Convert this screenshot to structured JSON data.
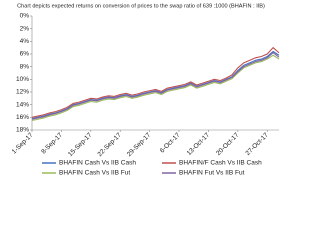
{
  "chart_data": {
    "type": "line",
    "title": "Chart depicts expected returns on conversion of  prices to the swap ratio of 639 :1000 (BHAFIN : IIB)",
    "categories": [
      "1-Sep-17",
      null,
      null,
      null,
      null,
      "8-Sep-17",
      null,
      null,
      null,
      null,
      "15-Sep-17",
      null,
      null,
      null,
      null,
      "22-Sep-17",
      null,
      null,
      null,
      null,
      "29-Sep-17",
      null,
      null,
      null,
      null,
      "6-Oct-17",
      null,
      null,
      null,
      null,
      "13-Oct-17",
      null,
      null,
      null,
      null,
      "20-Oct-17",
      null,
      null,
      null,
      null,
      "27-Oct-17",
      null,
      null
    ],
    "series": [
      {
        "name": "BHAFIN Cash Vs IIB Cash",
        "color": "#4472c4",
        "values": [
          16.2,
          16.0,
          15.8,
          15.5,
          15.3,
          15.0,
          14.6,
          14.0,
          13.8,
          13.5,
          13.2,
          13.3,
          13.0,
          12.8,
          12.9,
          12.6,
          12.4,
          12.7,
          12.5,
          12.2,
          12.0,
          11.8,
          12.1,
          11.6,
          11.4,
          11.2,
          11.0,
          10.6,
          11.1,
          10.8,
          10.5,
          10.2,
          10.4,
          10.0,
          9.6,
          8.6,
          7.8,
          7.4,
          7.0,
          6.8,
          6.4,
          5.6,
          6.2
        ]
      },
      {
        "name": "BHAFIN/F Cash Vs IIB Cash",
        "color": "#c0504d",
        "values": [
          16.0,
          15.8,
          15.6,
          15.3,
          15.1,
          14.8,
          14.4,
          13.8,
          13.6,
          13.3,
          13.0,
          13.1,
          12.8,
          12.6,
          12.7,
          12.4,
          12.2,
          12.5,
          12.3,
          12.0,
          11.8,
          11.6,
          11.9,
          11.4,
          11.2,
          11.0,
          10.8,
          10.4,
          10.9,
          10.6,
          10.3,
          10.0,
          10.2,
          9.8,
          9.3,
          8.2,
          7.4,
          7.0,
          6.6,
          6.4,
          6.0,
          5.0,
          5.8
        ]
      },
      {
        "name": "BHAFIN Cash Vs IIB Fut",
        "color": "#9bbb59",
        "values": [
          16.5,
          16.3,
          16.1,
          15.8,
          15.6,
          15.3,
          14.9,
          14.3,
          14.1,
          13.8,
          13.5,
          13.6,
          13.3,
          13.1,
          13.2,
          12.9,
          12.7,
          13.0,
          12.8,
          12.5,
          12.3,
          12.1,
          12.4,
          11.9,
          11.7,
          11.5,
          11.3,
          10.9,
          11.4,
          11.1,
          10.8,
          10.5,
          10.7,
          10.3,
          9.9,
          9.0,
          8.2,
          7.8,
          7.4,
          7.2,
          6.8,
          6.2,
          6.8
        ]
      },
      {
        "name": "BHAFIN Fut Vs IIB Fut",
        "color": "#8064a2",
        "values": [
          16.3,
          16.1,
          15.9,
          15.6,
          15.4,
          15.1,
          14.7,
          14.1,
          13.9,
          13.6,
          13.3,
          13.4,
          13.1,
          12.9,
          13.0,
          12.7,
          12.5,
          12.8,
          12.6,
          12.3,
          12.1,
          11.9,
          12.2,
          11.7,
          11.5,
          11.3,
          11.1,
          10.7,
          11.2,
          10.9,
          10.6,
          10.3,
          10.5,
          10.1,
          9.7,
          8.8,
          8.0,
          7.6,
          7.2,
          7.0,
          6.6,
          5.8,
          6.5
        ]
      }
    ],
    "ylim": [
      0,
      18
    ],
    "y_inverted": true,
    "yticks": [
      {
        "value": 0,
        "label": "0%"
      },
      {
        "value": 2,
        "label": "2%"
      },
      {
        "value": 4,
        "label": "4%"
      },
      {
        "value": 6,
        "label": "6%"
      },
      {
        "value": 8,
        "label": "8%"
      },
      {
        "value": 10,
        "label": "10%"
      },
      {
        "value": 12,
        "label": "12%"
      },
      {
        "value": 14,
        "label": "14%"
      },
      {
        "value": 16,
        "label": "16%"
      },
      {
        "value": 18,
        "label": "18%"
      }
    ],
    "grid": false,
    "legend": "bottom"
  }
}
